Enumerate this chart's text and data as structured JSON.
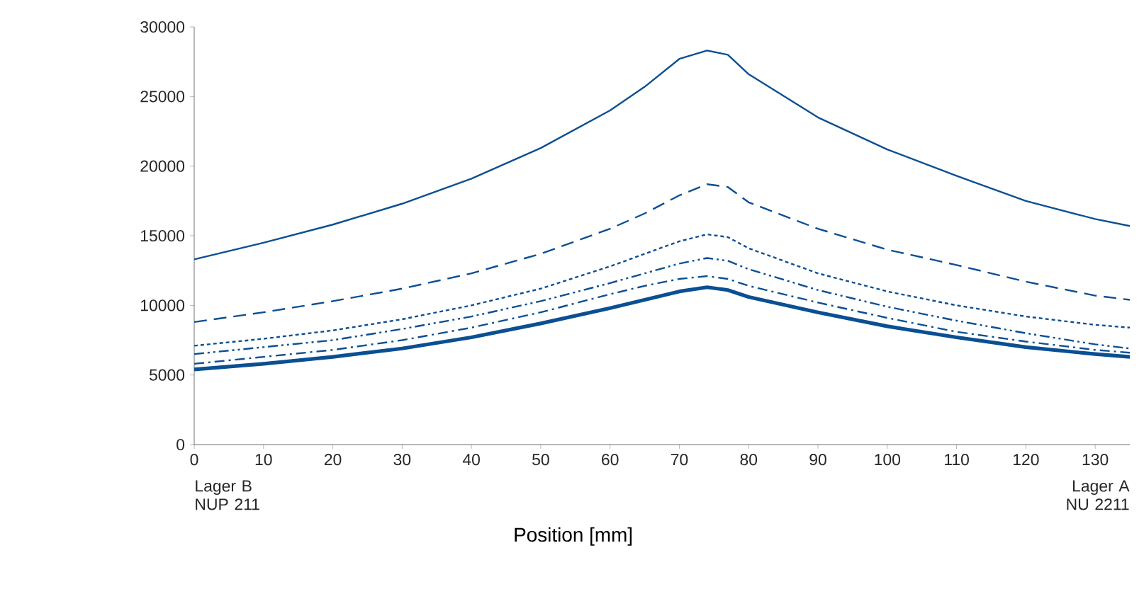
{
  "chart_data": {
    "type": "line",
    "xlabel": "Position [mm]",
    "xlim": [
      0,
      135
    ],
    "xticks": [
      0,
      10,
      20,
      30,
      40,
      50,
      60,
      70,
      80,
      90,
      100,
      110,
      120,
      130
    ],
    "ylim": [
      0,
      30000
    ],
    "yticks": [
      0,
      5000,
      10000,
      15000,
      20000,
      25000,
      30000
    ],
    "grid": false,
    "marker": "none",
    "annotations": [
      "Lager B NUP 211",
      "Lager A NU 2211"
    ],
    "x": [
      0,
      10,
      20,
      30,
      40,
      50,
      60,
      65,
      70,
      74,
      77,
      80,
      90,
      100,
      110,
      120,
      130,
      135
    ],
    "series": [
      {
        "color": "#0b4f93",
        "line_style": "solid",
        "values": [
          13300,
          14500,
          15800,
          17300,
          19100,
          21300,
          24000,
          25700,
          27700,
          28300,
          28000,
          26600,
          23500,
          21200,
          19300,
          17500,
          16200,
          15700
        ]
      },
      {
        "color": "#0b4f93",
        "line_style": "dashed",
        "values": [
          8800,
          9500,
          10300,
          11200,
          12300,
          13700,
          15500,
          16600,
          17900,
          18700,
          18500,
          17400,
          15500,
          14000,
          12900,
          11700,
          10700,
          10400
        ]
      },
      {
        "color": "#0b4f93",
        "line_style": "dotted",
        "values": [
          7100,
          7600,
          8200,
          9000,
          10000,
          11200,
          12800,
          13700,
          14600,
          15100,
          14900,
          14100,
          12300,
          11000,
          10000,
          9200,
          8600,
          8400
        ]
      },
      {
        "color": "#0b4f93",
        "line_style": "dashdotdot",
        "values": [
          6500,
          7000,
          7500,
          8300,
          9200,
          10300,
          11600,
          12300,
          13000,
          13400,
          13200,
          12600,
          11100,
          9900,
          8900,
          8000,
          7200,
          6900
        ]
      },
      {
        "color": "#0b4f93",
        "line_style": "dashdot",
        "values": [
          5800,
          6300,
          6800,
          7500,
          8400,
          9500,
          10800,
          11400,
          11900,
          12100,
          11900,
          11400,
          10200,
          9100,
          8100,
          7400,
          6800,
          6600
        ]
      },
      {
        "color": "#0b4f93",
        "line_style": "solid",
        "values": [
          5400,
          5800,
          6300,
          6900,
          7700,
          8700,
          9800,
          10400,
          11000,
          11300,
          11100,
          10600,
          9500,
          8500,
          7700,
          7000,
          6500,
          6300
        ]
      }
    ]
  }
}
